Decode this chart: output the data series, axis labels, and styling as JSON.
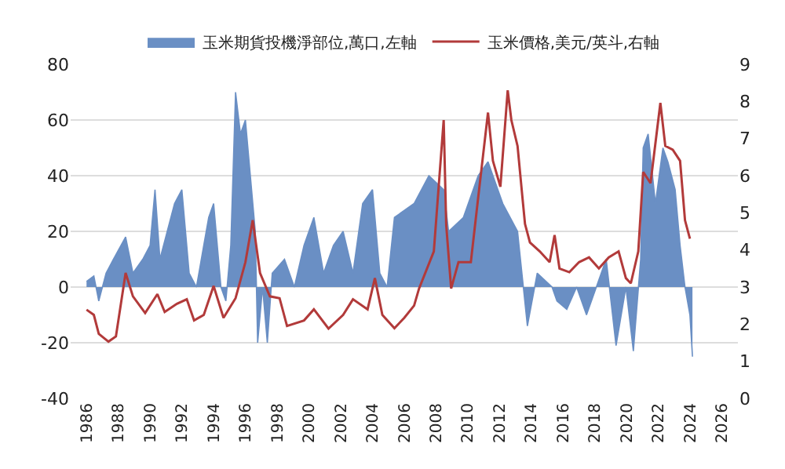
{
  "chart_data": {
    "type": "line",
    "series": [
      {
        "name": "玉米期貨投機淨部位,萬口,左軸",
        "type": "area",
        "color": "#6a8fc4",
        "x": [
          1986.0,
          1986.46,
          1986.77,
          1987.23,
          1987.69,
          1988.46,
          1988.92,
          1989.54,
          1990.0,
          1990.31,
          1990.62,
          1991.08,
          1991.54,
          1992.0,
          1992.46,
          1992.92,
          1993.38,
          1993.69,
          1994.0,
          1994.46,
          1994.77,
          1995.08,
          1995.38,
          1995.69,
          1996.0,
          1996.31,
          1996.62,
          1996.77,
          1997.08,
          1997.38,
          1997.69,
          1998.46,
          1999.08,
          1999.69,
          2000.31,
          2000.92,
          2001.54,
          2002.15,
          2002.77,
          2003.38,
          2004.0,
          2004.46,
          2004.92,
          2005.38,
          2006.62,
          2007.55,
          2008.48,
          2008.79,
          2009.72,
          2010.65,
          2011.27,
          2012.2,
          2013.13,
          2013.75,
          2014.37,
          2015.3,
          2015.61,
          2016.23,
          2016.85,
          2017.47,
          2018.09,
          2018.71,
          2019.33,
          2019.95,
          2020.42,
          2020.88,
          2021.04,
          2021.35,
          2021.81,
          2022.28,
          2022.59,
          2023.05,
          2023.36,
          2023.67,
          2023.98,
          2024.14
        ],
        "values": [
          2,
          4,
          -5,
          5,
          10,
          18,
          5,
          10,
          15,
          35,
          10,
          20,
          30,
          35,
          5,
          0,
          15,
          25,
          30,
          0,
          -5,
          15,
          70,
          55,
          60,
          40,
          20,
          -20,
          0,
          -20,
          5,
          10,
          0,
          15,
          25,
          5,
          15,
          20,
          5,
          30,
          35,
          5,
          0,
          25,
          30,
          40,
          35,
          20,
          25,
          40,
          45,
          30,
          20,
          -14,
          5,
          0,
          -5,
          -8,
          0,
          -10,
          0,
          10,
          -21,
          0,
          -23,
          10,
          50,
          55,
          30,
          50,
          45,
          35,
          15,
          0,
          -10,
          -25
        ]
      },
      {
        "name": "玉米價格,美元/英斗,右軸",
        "axis": "y2",
        "color": "#b23a3a",
        "x": [
          1986.0,
          1986.46,
          1986.77,
          1987.38,
          1987.85,
          1988.46,
          1988.92,
          1989.69,
          1990.46,
          1990.92,
          1991.69,
          1992.31,
          1992.77,
          1993.38,
          1994.0,
          1994.62,
          1995.38,
          1996.0,
          1996.46,
          1996.92,
          1997.54,
          1998.15,
          1998.62,
          1999.69,
          2000.31,
          2001.23,
          2002.15,
          2002.77,
          2003.69,
          2004.15,
          2004.62,
          2005.38,
          2006.0,
          2006.62,
          2006.93,
          2007.86,
          2008.48,
          2008.64,
          2008.95,
          2009.41,
          2010.19,
          2010.65,
          2011.27,
          2011.58,
          2012.05,
          2012.51,
          2012.74,
          2013.13,
          2013.44,
          2013.6,
          2013.91,
          2014.53,
          2015.15,
          2015.46,
          2015.77,
          2016.39,
          2017.0,
          2017.63,
          2018.25,
          2018.87,
          2019.49,
          2019.95,
          2020.26,
          2020.73,
          2021.04,
          2021.5,
          2022.12,
          2022.43,
          2022.9,
          2023.36,
          2023.67,
          2023.98
        ],
        "values": [
          2.39,
          2.25,
          1.74,
          1.53,
          1.67,
          3.38,
          2.75,
          2.3,
          2.81,
          2.33,
          2.55,
          2.67,
          2.1,
          2.25,
          3.03,
          2.17,
          2.7,
          3.67,
          4.8,
          3.38,
          2.75,
          2.7,
          1.95,
          2.1,
          2.4,
          1.88,
          2.25,
          2.67,
          2.4,
          3.24,
          2.25,
          1.89,
          2.17,
          2.5,
          2.96,
          3.96,
          7.5,
          4.67,
          2.96,
          3.67,
          3.67,
          5.4,
          7.7,
          6.4,
          5.7,
          8.3,
          7.5,
          6.8,
          5.4,
          4.7,
          4.2,
          3.96,
          3.67,
          4.4,
          3.5,
          3.4,
          3.67,
          3.8,
          3.5,
          3.8,
          3.96,
          3.24,
          3.1,
          3.96,
          6.1,
          5.8,
          7.96,
          6.8,
          6.7,
          6.4,
          4.8,
          4.3
        ]
      }
    ],
    "xlim": [
      1985,
      2027
    ],
    "xticks": [
      1986,
      1988,
      1990,
      1992,
      1994,
      1996,
      1998,
      2000,
      2002,
      2004,
      2006,
      2008,
      2010,
      2012,
      2014,
      2016,
      2018,
      2020,
      2022,
      2024,
      2026
    ],
    "ylim": [
      -40,
      80
    ],
    "yticks": [
      -40,
      -20,
      0,
      20,
      40,
      60,
      80
    ],
    "y2lim": [
      0,
      9
    ],
    "y2ticks": [
      0,
      1,
      2,
      3,
      4,
      5,
      6,
      7,
      8,
      9
    ],
    "grid": "y",
    "legend": "top",
    "line_style": "solid",
    "marker": "none"
  }
}
